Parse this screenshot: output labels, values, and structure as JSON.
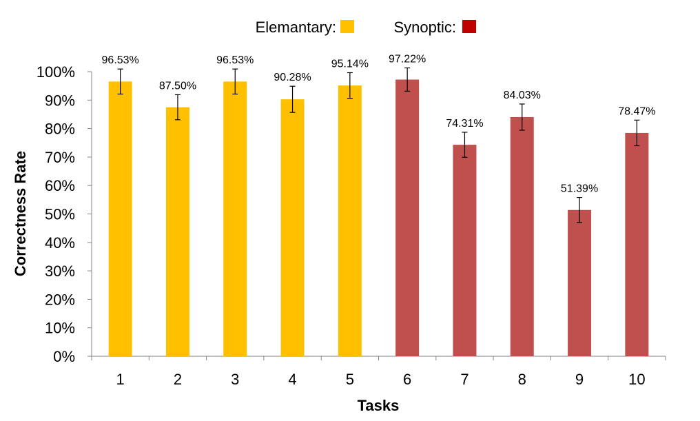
{
  "chart_data": {
    "type": "bar",
    "title": "",
    "xlabel": "Tasks",
    "ylabel": "Correctness Rate",
    "ylim": [
      0,
      100
    ],
    "yticks": [
      "0%",
      "10%",
      "20%",
      "30%",
      "40%",
      "50%",
      "60%",
      "70%",
      "80%",
      "90%",
      "100%"
    ],
    "categories": [
      "1",
      "2",
      "3",
      "4",
      "5",
      "6",
      "7",
      "8",
      "9",
      "10"
    ],
    "values": [
      96.53,
      87.5,
      96.53,
      90.28,
      95.14,
      97.22,
      74.31,
      84.03,
      51.39,
      78.47
    ],
    "data_labels": [
      "96.53%",
      "87.50%",
      "96.53%",
      "90.28%",
      "95.14%",
      "97.22%",
      "74.31%",
      "84.03%",
      "51.39%",
      "78.47%"
    ],
    "error_bars": [
      4.4,
      4.4,
      4.4,
      4.6,
      4.5,
      4.1,
      4.4,
      4.6,
      4.4,
      4.5
    ],
    "groups": [
      "Elemantary",
      "Elemantary",
      "Elemantary",
      "Elemantary",
      "Elemantary",
      "Synoptic",
      "Synoptic",
      "Synoptic",
      "Synoptic",
      "Synoptic"
    ],
    "legend": [
      {
        "label": "Elemantary:",
        "color": "#FFC000"
      },
      {
        "label": "Synoptic:",
        "color": "#C00000"
      }
    ],
    "bar_colors": {
      "Elemantary": "#FFC000",
      "Synoptic": "#C0504D"
    },
    "legend_position": "top-center",
    "grid": false
  }
}
